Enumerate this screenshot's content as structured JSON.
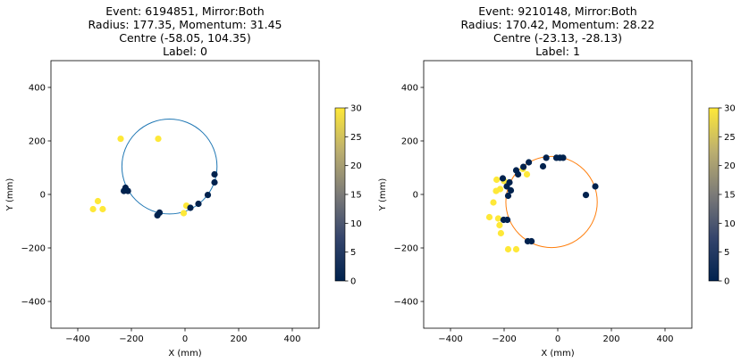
{
  "chart_data": [
    {
      "type": "scatter",
      "title_lines": [
        "Event: 6194851, Mirror:Both",
        "Radius: 177.35, Momentum: 31.45",
        "Centre (-58.05, 104.35)",
        "Label: 0"
      ],
      "xlabel": "X (mm)",
      "ylabel": "Y (mm)",
      "xlim": [
        -500,
        500
      ],
      "ylim": [
        -500,
        500
      ],
      "xticks": [
        "−400",
        "−200",
        "0",
        "200",
        "400"
      ],
      "yticks": [
        "−400",
        "−200",
        "0",
        "200",
        "400"
      ],
      "circle": {
        "center": [
          -58.05,
          104.35
        ],
        "radius": 177.35,
        "color": "#1f77b4"
      },
      "colorbar": {
        "min": 0,
        "max": 30,
        "ticks": [
          "0",
          "5",
          "10",
          "15",
          "20",
          "25",
          "30"
        ],
        "colormap": "cividis"
      },
      "points": [
        {
          "x": -240,
          "y": 208,
          "c": 30
        },
        {
          "x": -100,
          "y": 208,
          "c": 30
        },
        {
          "x": -325,
          "y": -25,
          "c": 30
        },
        {
          "x": -343,
          "y": -55,
          "c": 30
        },
        {
          "x": -307,
          "y": -55,
          "c": 30
        },
        {
          "x": -228,
          "y": 13,
          "c": 0
        },
        {
          "x": -222,
          "y": 25,
          "c": 0
        },
        {
          "x": -213,
          "y": 13,
          "c": 0
        },
        {
          "x": -95,
          "y": -68,
          "c": 0
        },
        {
          "x": -103,
          "y": -78,
          "c": 0
        },
        {
          "x": -5,
          "y": -70,
          "c": 30
        },
        {
          "x": 5,
          "y": -42,
          "c": 30
        },
        {
          "x": 20,
          "y": -50,
          "c": 0
        },
        {
          "x": 50,
          "y": -35,
          "c": 0
        },
        {
          "x": 85,
          "y": -2,
          "c": 0
        },
        {
          "x": 110,
          "y": 45,
          "c": 0
        },
        {
          "x": 110,
          "y": 75,
          "c": 0
        }
      ]
    },
    {
      "type": "scatter",
      "title_lines": [
        "Event: 9210148, Mirror:Both",
        "Radius: 170.42, Momentum: 28.22",
        "Centre (-23.13, -28.13)",
        "Label: 1"
      ],
      "xlabel": "X (mm)",
      "ylabel": "Y (mm)",
      "xlim": [
        -500,
        500
      ],
      "ylim": [
        -500,
        500
      ],
      "xticks": [
        "−400",
        "−200",
        "0",
        "200",
        "400"
      ],
      "yticks": [
        "−400",
        "−200",
        "0",
        "200",
        "400"
      ],
      "circle": {
        "center": [
          -23.13,
          -28.13
        ],
        "radius": 170.42,
        "color": "#ff7f0e"
      },
      "colorbar": {
        "min": 0,
        "max": 30,
        "ticks": [
          "0",
          "5",
          "10",
          "15",
          "20",
          "25",
          "30"
        ],
        "colormap": "cividis"
      },
      "points": [
        {
          "x": -228,
          "y": 55,
          "c": 30
        },
        {
          "x": -200,
          "y": 50,
          "c": 30
        },
        {
          "x": -215,
          "y": 20,
          "c": 30
        },
        {
          "x": -230,
          "y": 13,
          "c": 30
        },
        {
          "x": -240,
          "y": -30,
          "c": 30
        },
        {
          "x": -255,
          "y": -85,
          "c": 30
        },
        {
          "x": -222,
          "y": -90,
          "c": 30
        },
        {
          "x": -217,
          "y": -115,
          "c": 30
        },
        {
          "x": -212,
          "y": -145,
          "c": 30
        },
        {
          "x": -185,
          "y": -205,
          "c": 30
        },
        {
          "x": -155,
          "y": -205,
          "c": 30
        },
        {
          "x": -130,
          "y": 95,
          "c": 30
        },
        {
          "x": -115,
          "y": 75,
          "c": 30
        },
        {
          "x": -205,
          "y": 60,
          "c": 0
        },
        {
          "x": -190,
          "y": 30,
          "c": 0
        },
        {
          "x": -180,
          "y": 45,
          "c": 0
        },
        {
          "x": -175,
          "y": 15,
          "c": 0
        },
        {
          "x": -185,
          "y": -5,
          "c": 0
        },
        {
          "x": -202,
          "y": -95,
          "c": 0
        },
        {
          "x": -188,
          "y": -95,
          "c": 0
        },
        {
          "x": -155,
          "y": 90,
          "c": 0
        },
        {
          "x": -148,
          "y": 75,
          "c": 0
        },
        {
          "x": -128,
          "y": 103,
          "c": 0
        },
        {
          "x": -108,
          "y": 120,
          "c": 0
        },
        {
          "x": -112,
          "y": -175,
          "c": 0
        },
        {
          "x": -98,
          "y": -175,
          "c": 0
        },
        {
          "x": -55,
          "y": 105,
          "c": 0
        },
        {
          "x": -43,
          "y": 137,
          "c": 0
        },
        {
          "x": -5,
          "y": 137,
          "c": 0
        },
        {
          "x": 8,
          "y": 137,
          "c": 0
        },
        {
          "x": 20,
          "y": 137,
          "c": 0
        },
        {
          "x": 105,
          "y": -2,
          "c": 0
        },
        {
          "x": 140,
          "y": 30,
          "c": 0
        }
      ]
    }
  ]
}
